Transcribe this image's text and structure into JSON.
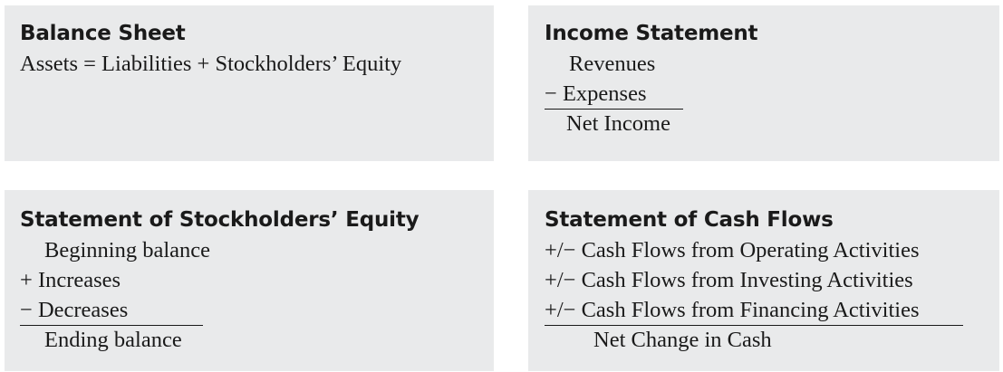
{
  "balance_sheet": {
    "title": "Balance Sheet",
    "equation": "Assets = Liabilities + Stockholders’ Equity"
  },
  "income_statement": {
    "title": "Income Statement",
    "lines": [
      "Revenues",
      "− Expenses"
    ],
    "result": "Net Income"
  },
  "stockholders_equity": {
    "title": "Statement of Stockholders’ Equity",
    "lines": [
      "Beginning balance",
      "+ Increases",
      "− Decreases"
    ],
    "result": "Ending balance"
  },
  "cash_flows": {
    "title": "Statement of Cash Flows",
    "lines": [
      "+/− Cash Flows from Operating Activities",
      "+/− Cash Flows from Investing Activities",
      "+/− Cash Flows from Financing Activities"
    ],
    "result": "Net Change in Cash"
  },
  "colors": {
    "panel_background": "#e9eaeb",
    "text": "#1a1a1a"
  }
}
